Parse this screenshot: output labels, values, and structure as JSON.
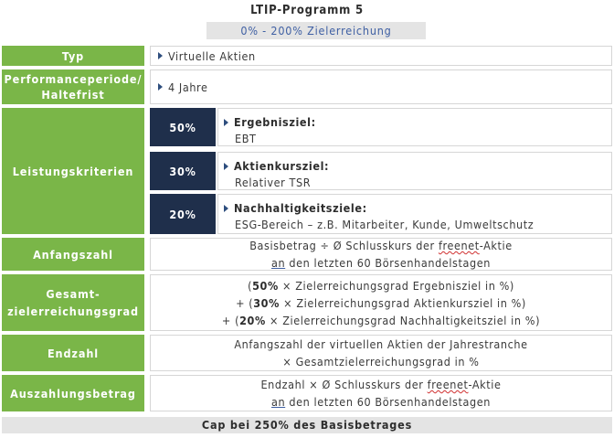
{
  "title": "LTIP-Programm 5",
  "subtitle": "0% - 200% Zielerreichung",
  "rows": {
    "typ": {
      "label": "Typ",
      "value": "Virtuelle Aktien"
    },
    "performance": {
      "label_line1": "Performanceperiode/",
      "label_line2": "Haltefrist",
      "value": "4 Jahre"
    },
    "leistung": {
      "label": "Leistungskriterien",
      "criteria": [
        {
          "pct": "50%",
          "name": "Ergebnisziel:",
          "desc": "EBT"
        },
        {
          "pct": "30%",
          "name": "Aktienkursziel:",
          "desc": "Relativer TSR"
        },
        {
          "pct": "20%",
          "name": "Nachhaltigkeitsziele:",
          "desc": "ESG-Bereich – z.B. Mitarbeiter, Kunde, Umweltschutz"
        }
      ]
    },
    "anfangszahl": {
      "label": "Anfangszahl",
      "line1_pre": "Basisbetrag ÷ Ø Schlusskurs der ",
      "line1_link": "freenet",
      "line1_post": "-Aktie",
      "line2_link": "an",
      "line2_post": " den letzten 60 Börsenhandelstagen"
    },
    "gesamt": {
      "label_line1": "Gesamt-",
      "label_line2": "zielerreichungsgrad",
      "lines": [
        {
          "pre": "(",
          "bold": "50%",
          "post": " × Zielerreichungsgrad Ergebnisziel in %)"
        },
        {
          "pre": "+ (",
          "bold": "30%",
          "post": " × Zielerreichungsgrad Aktienkursziel in %)"
        },
        {
          "pre": "+ (",
          "bold": "20%",
          "post": " × Zielerreichungsgrad Nachhaltigkeitsziel in %)"
        }
      ]
    },
    "endzahl": {
      "label": "Endzahl",
      "line1": "Anfangszahl der virtuellen Aktien der Jahrestranche",
      "line2": "× Gesamtzielerreichungsgrad in %"
    },
    "auszahlung": {
      "label": "Auszahlungsbetrag",
      "line1_pre": "Endzahl × Ø Schlusskurs der ",
      "line1_link": "freenet",
      "line1_post": "-Aktie",
      "line2_link": "an",
      "line2_post": " den letzten 60 Börsenhandelstagen"
    }
  },
  "cap": "Cap bei 250% des Basisbetrages",
  "colors": {
    "green": "#7ab648",
    "navy": "#1f2f4b",
    "gray": "#e4e4e4",
    "blue_text": "#3e5fa3"
  },
  "icons": {
    "bullet": "triangle-right-icon"
  }
}
